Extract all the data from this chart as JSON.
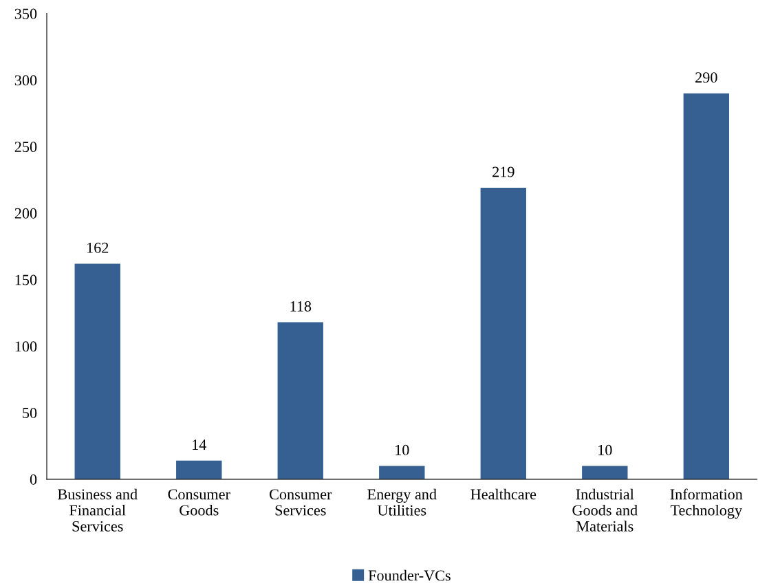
{
  "chart_data": {
    "type": "bar",
    "categories": [
      "Business and\nFinancial\nServices",
      "Consumer\nGoods",
      "Consumer\nServices",
      "Energy and\nUtilities",
      "Healthcare",
      "Industrial\nGoods and\nMaterials",
      "Information\nTechnology"
    ],
    "series": [
      {
        "name": "Founder-VCs",
        "color": "#366092",
        "values": [
          162,
          14,
          118,
          10,
          219,
          10,
          290
        ]
      }
    ],
    "ylim": [
      0,
      350
    ],
    "yticks": [
      0,
      50,
      100,
      150,
      200,
      250,
      300,
      350
    ],
    "data_labels": true,
    "legend": "bottom",
    "grid": false
  }
}
